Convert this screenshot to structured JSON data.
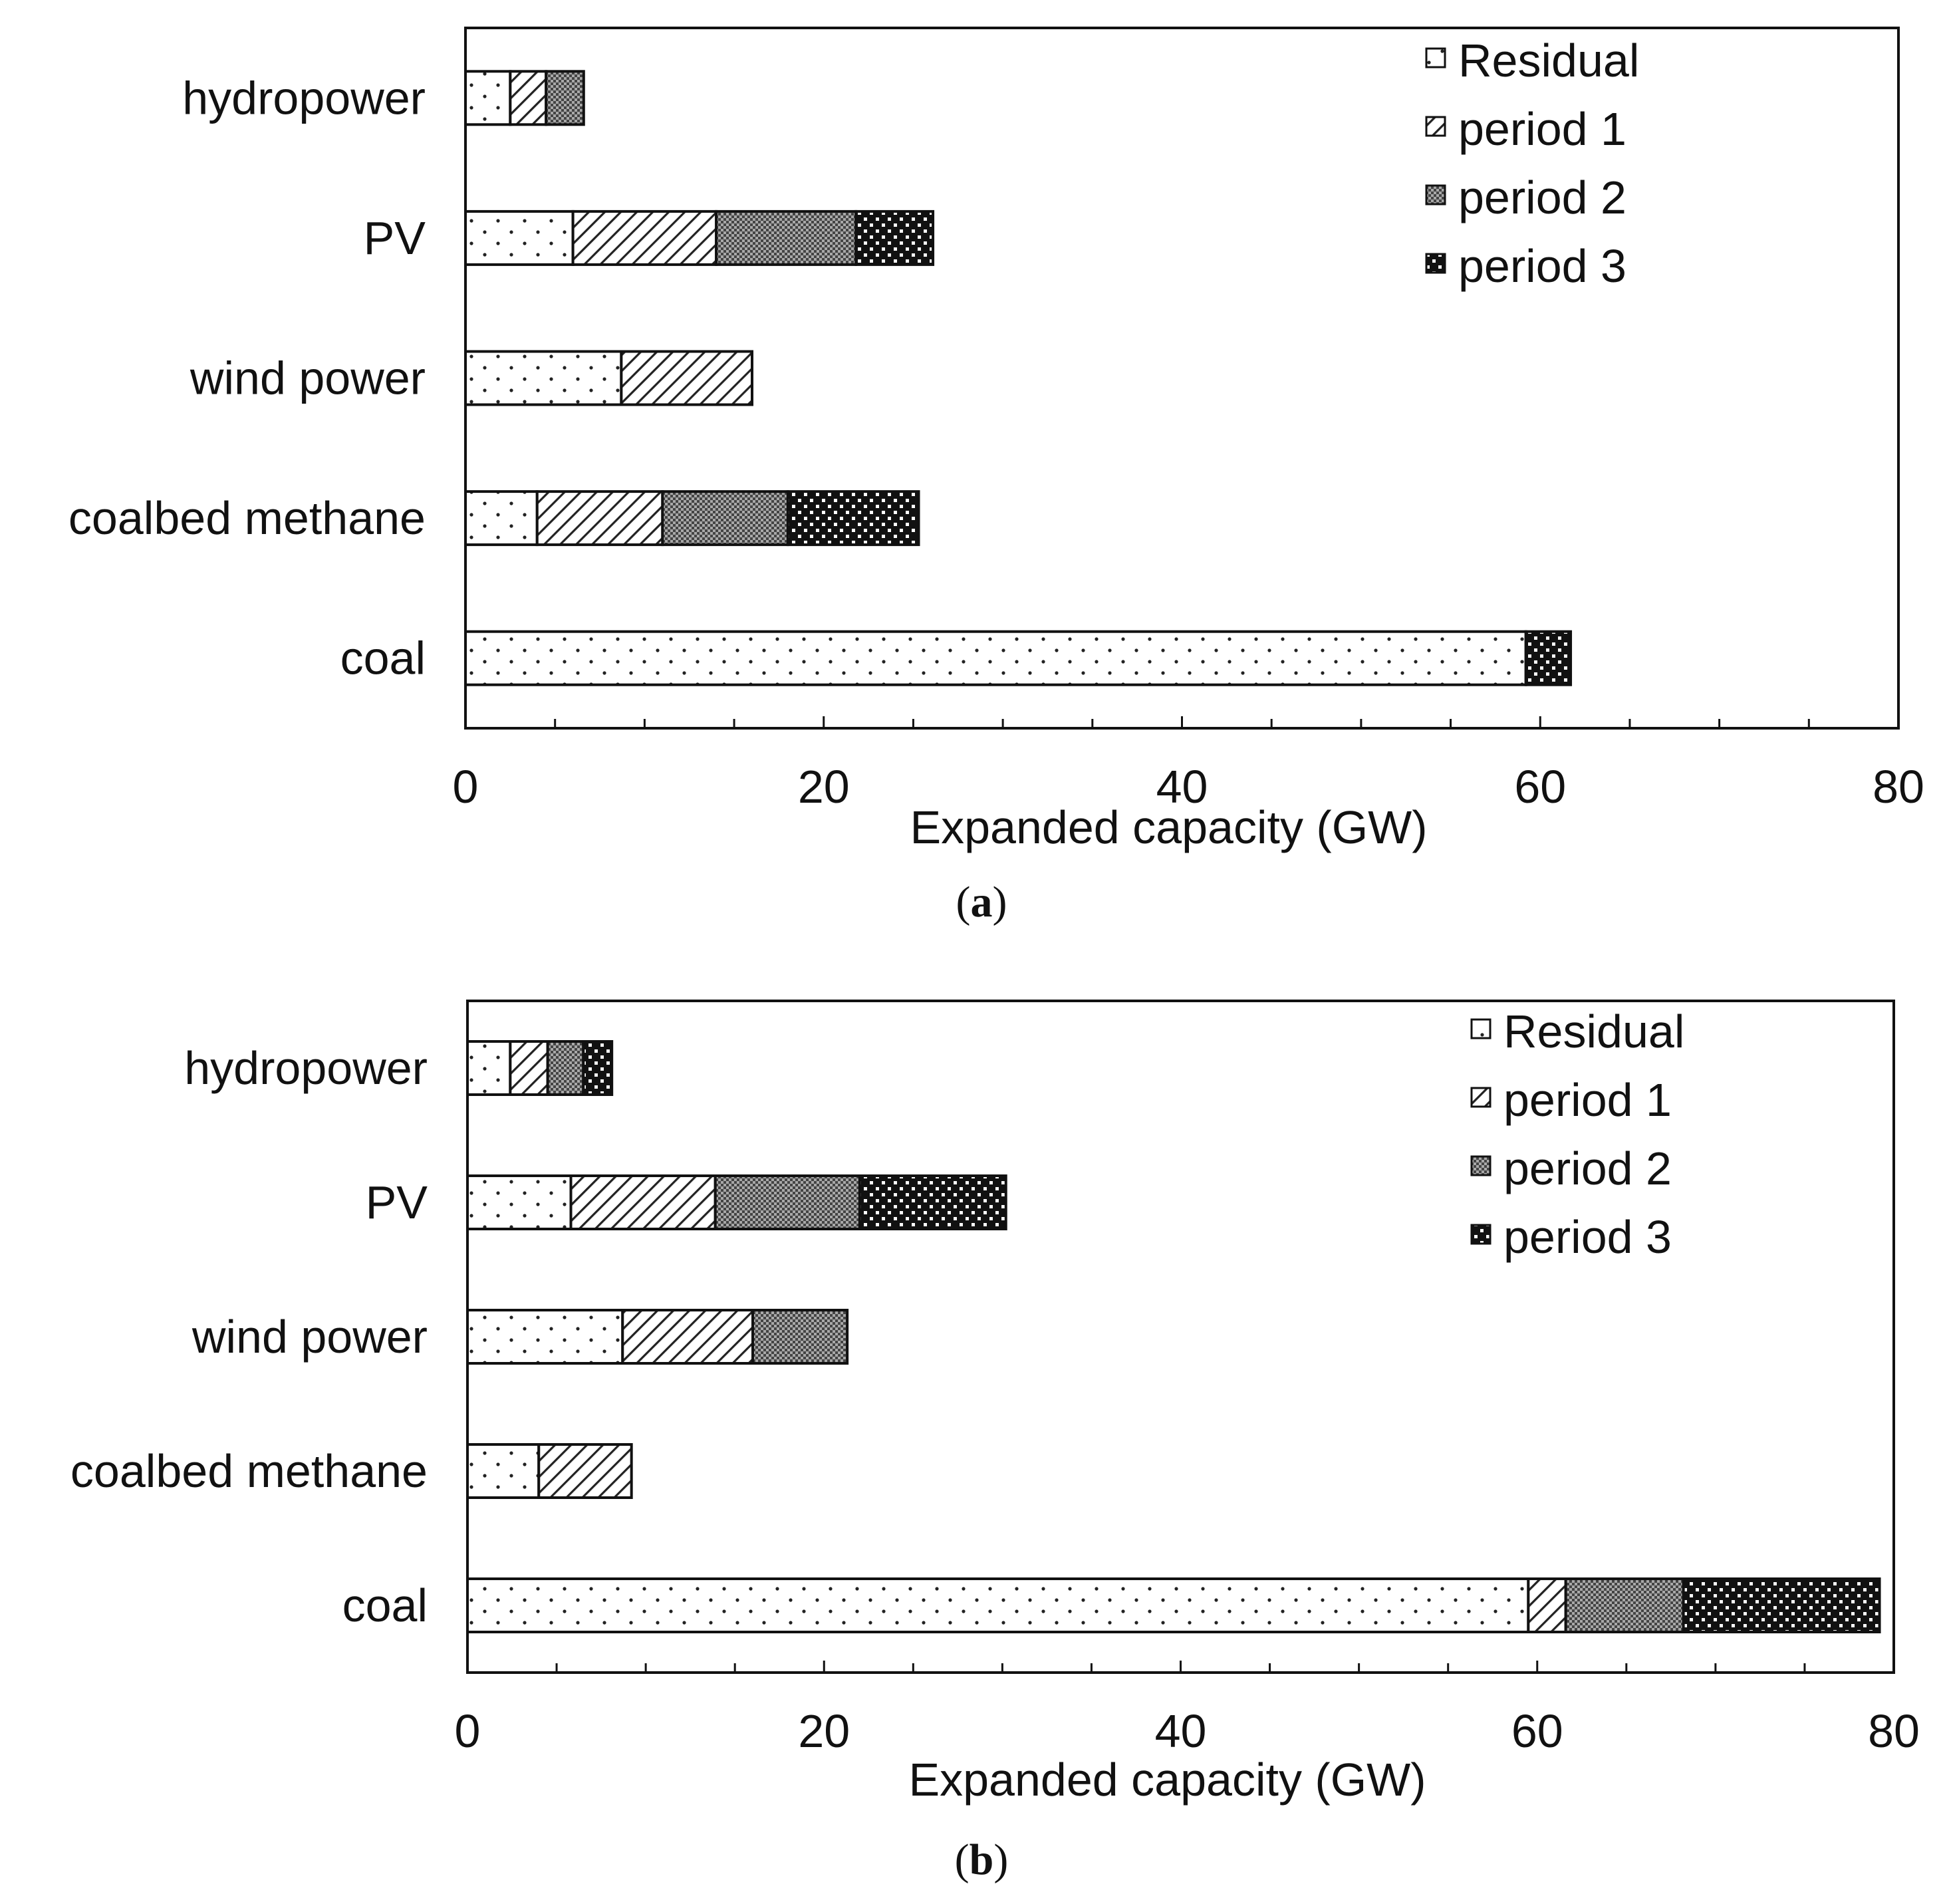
{
  "chart_data": [
    {
      "type": "bar",
      "orientation": "horizontal",
      "stacked": true,
      "panel_label": "a",
      "categories": [
        "hydropower",
        "PV",
        "wind power",
        "coalbed  methane",
        "coal"
      ],
      "series": [
        {
          "name": "Residual",
          "values": [
            2.5,
            6,
            8.7,
            4,
            59.2
          ],
          "pattern": "dots"
        },
        {
          "name": "period 1",
          "values": [
            2,
            8,
            7.3,
            7,
            0
          ],
          "pattern": "hatch"
        },
        {
          "name": "period 2",
          "values": [
            2.1,
            7.8,
            0,
            7,
            0
          ],
          "pattern": "crosshatch"
        },
        {
          "name": "period 3",
          "values": [
            0,
            4.3,
            0,
            7.3,
            2.5
          ],
          "pattern": "checker"
        }
      ],
      "xlabel": "Expanded capacity (GW)",
      "ylabel": "",
      "xlim": [
        0,
        80
      ],
      "xticks": [
        "0",
        "20",
        "40",
        "60",
        "80"
      ],
      "legend_position": "top-right"
    },
    {
      "type": "bar",
      "orientation": "horizontal",
      "stacked": true,
      "panel_label": "b",
      "categories": [
        "hydropower",
        "PV",
        "wind power",
        "coalbed  methane",
        "coal"
      ],
      "series": [
        {
          "name": "Residual",
          "values": [
            2.4,
            5.8,
            8.7,
            4,
            59.5
          ],
          "pattern": "dots"
        },
        {
          "name": "period 1",
          "values": [
            2.1,
            8.1,
            7.3,
            5.2,
            2.1
          ],
          "pattern": "hatch"
        },
        {
          "name": "period 2",
          "values": [
            2,
            8.1,
            5.3,
            0,
            6.6
          ],
          "pattern": "crosshatch"
        },
        {
          "name": "period 3",
          "values": [
            1.6,
            8.2,
            0,
            0,
            11
          ],
          "pattern": "checker"
        }
      ],
      "xlabel": "Expanded capacity (GW)",
      "ylabel": "",
      "xlim": [
        0,
        80
      ],
      "xticks": [
        "0",
        "20",
        "40",
        "60",
        "80"
      ],
      "legend_position": "top-right"
    }
  ]
}
